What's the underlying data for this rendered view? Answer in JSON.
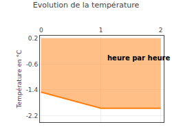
{
  "chart_data": {
    "type": "area",
    "title": "Evolution de la température",
    "ylabel": "Température en °C",
    "x": [
      0,
      1,
      2
    ],
    "values": [
      -1.47,
      -1.97,
      -1.97
    ],
    "fill_top": 0.2,
    "xlim": [
      -0.02,
      2.05
    ],
    "xticks": [
      0,
      1,
      2
    ],
    "ylim": [
      -2.4,
      0.28
    ],
    "yticks": [
      0.2,
      -0.6,
      -1.4,
      -2.2
    ],
    "grid": true,
    "annotations": [
      {
        "text": "heure par heure",
        "x": 1.08,
        "y": -0.42
      }
    ]
  }
}
